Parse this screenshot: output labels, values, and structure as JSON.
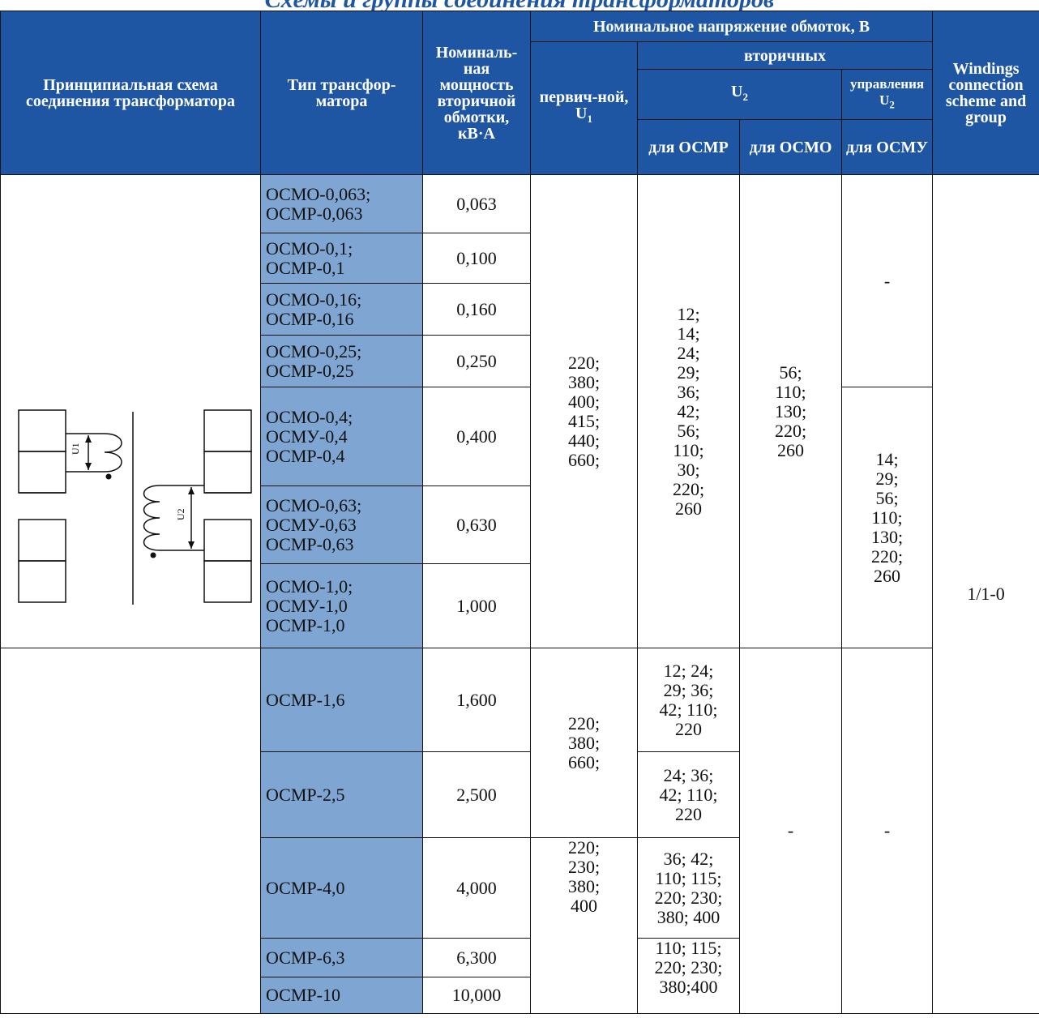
{
  "page_title": "Схемы и группы соединения трансформаторов",
  "headers": {
    "scheme": "Принципиальная схема соединения трансформатора",
    "type": "Тип трансфор-матора",
    "power": "Номиналь-ная мощность вторичной обмотки, кВ·А",
    "voltage_group": "Номинальное напряжение обмоток, В",
    "primary": "первич-ной, U",
    "primary_sub": "1",
    "secondary": "вторичных",
    "u2": "U",
    "u2_sub": "2",
    "control": "управления U",
    "control_sub": "2",
    "for_osmr": "для ОСМР",
    "for_osmo": "для ОСМО",
    "for_osmu": "для ОСМУ",
    "windings": "Windings connection scheme and group"
  },
  "scheme_labels": {
    "u1": "U1",
    "u2": "U2"
  },
  "rows": [
    {
      "type": "ОСМО-0,063;\nОСМР-0,063",
      "power": "0,063"
    },
    {
      "type": "ОСМО-0,1;\nОСМР-0,1",
      "power": "0,100"
    },
    {
      "type": "ОСМО-0,16;\nОСМР-0,16",
      "power": "0,160"
    },
    {
      "type": "ОСМО-0,25;\nОСМР-0,25",
      "power": "0,250"
    },
    {
      "type": "ОСМО-0,4;\nОСМУ-0,4\nОСМР-0,4",
      "power": "0,400"
    },
    {
      "type": "ОСМО-0,63;\nОСМУ-0,63\nОСМР-0,63",
      "power": "0,630"
    },
    {
      "type": "ОСМО-1,0;\nОСМУ-1,0\nОСМР-1,0",
      "power": "1,000"
    },
    {
      "type": "ОСМР-1,6",
      "power": "1,600"
    },
    {
      "type": "ОСМР-2,5",
      "power": "2,500"
    },
    {
      "type": "ОСМР-4,0",
      "power": "4,000"
    },
    {
      "type": "ОСМР-6,3",
      "power": "6,300"
    },
    {
      "type": "ОСМР-10",
      "power": "10,000"
    }
  ],
  "groups": {
    "primary_a": "220;\n380;\n400;\n415;\n440;\n660;",
    "primary_b": "220;\n380;\n660;",
    "primary_c": "220;\n230;\n380;\n400",
    "osmr_a": "12;\n14;\n24;\n29;\n36;\n42;\n56;\n110;\n30;\n220;\n260",
    "osmr_16": "12; 24;\n29; 36;\n42; 110;\n220",
    "osmr_25": "24; 36;\n42; 110;\n220",
    "osmr_40": "36; 42;\n110; 115;\n220; 230;\n380; 400",
    "osmr_63_10": "110; 115;\n220; 230;\n380;400",
    "osmo_a": "56;\n110;\n130;\n220;\n260",
    "osmo_b": "-",
    "osmu_a": "-",
    "osmu_b": "14;\n29;\n56;\n110;\n130;\n220;\n260",
    "osmu_c": "-",
    "windings_value": "1/1-0"
  }
}
